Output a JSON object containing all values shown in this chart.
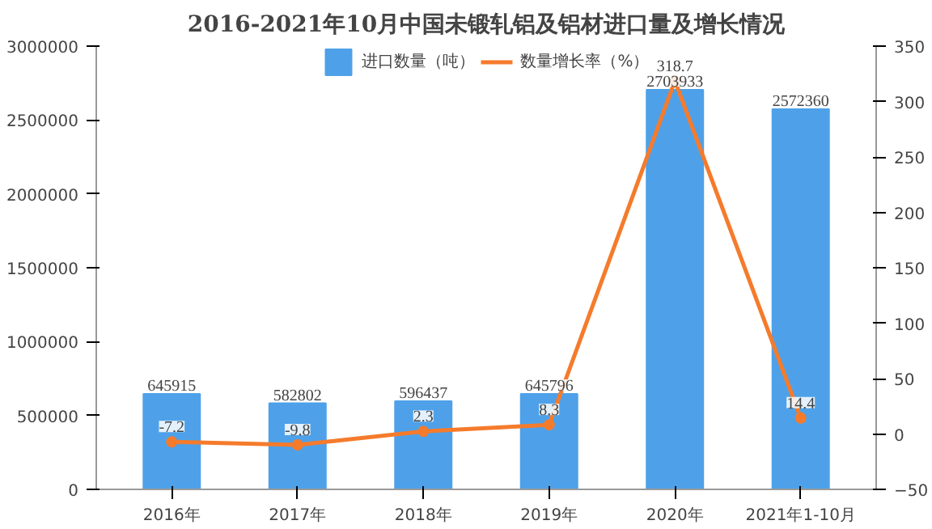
{
  "chart_data": {
    "type": "bar",
    "title": "2016-2021年10月中国未锻轧铝及铝材进口量及增长情况",
    "categories": [
      "2016年",
      "2017年",
      "2018年",
      "2019年",
      "2020年",
      "2021年1-10月"
    ],
    "series": [
      {
        "name": "进口数量（吨）",
        "color": "#4ea1e9",
        "values": [
          645915,
          582802,
          596437,
          645796,
          2703933,
          2572360
        ]
      },
      {
        "name": "数量增长率（%）",
        "type": "line",
        "axis": "y2",
        "color": "#f57b2c",
        "marker": "circle",
        "values": [
          -7.2,
          -9.8,
          2.3,
          8.3,
          318.7,
          14.4
        ]
      }
    ],
    "ylim": [
      0,
      3000000
    ],
    "yticks": [
      0,
      500000,
      1000000,
      1500000,
      2000000,
      2500000,
      3000000
    ],
    "y2lim": [
      -50,
      350
    ],
    "y2ticks": [
      -50,
      0,
      50,
      100,
      150,
      200,
      250,
      300,
      350
    ],
    "data_labels": true,
    "legend": "top",
    "grid": false
  }
}
